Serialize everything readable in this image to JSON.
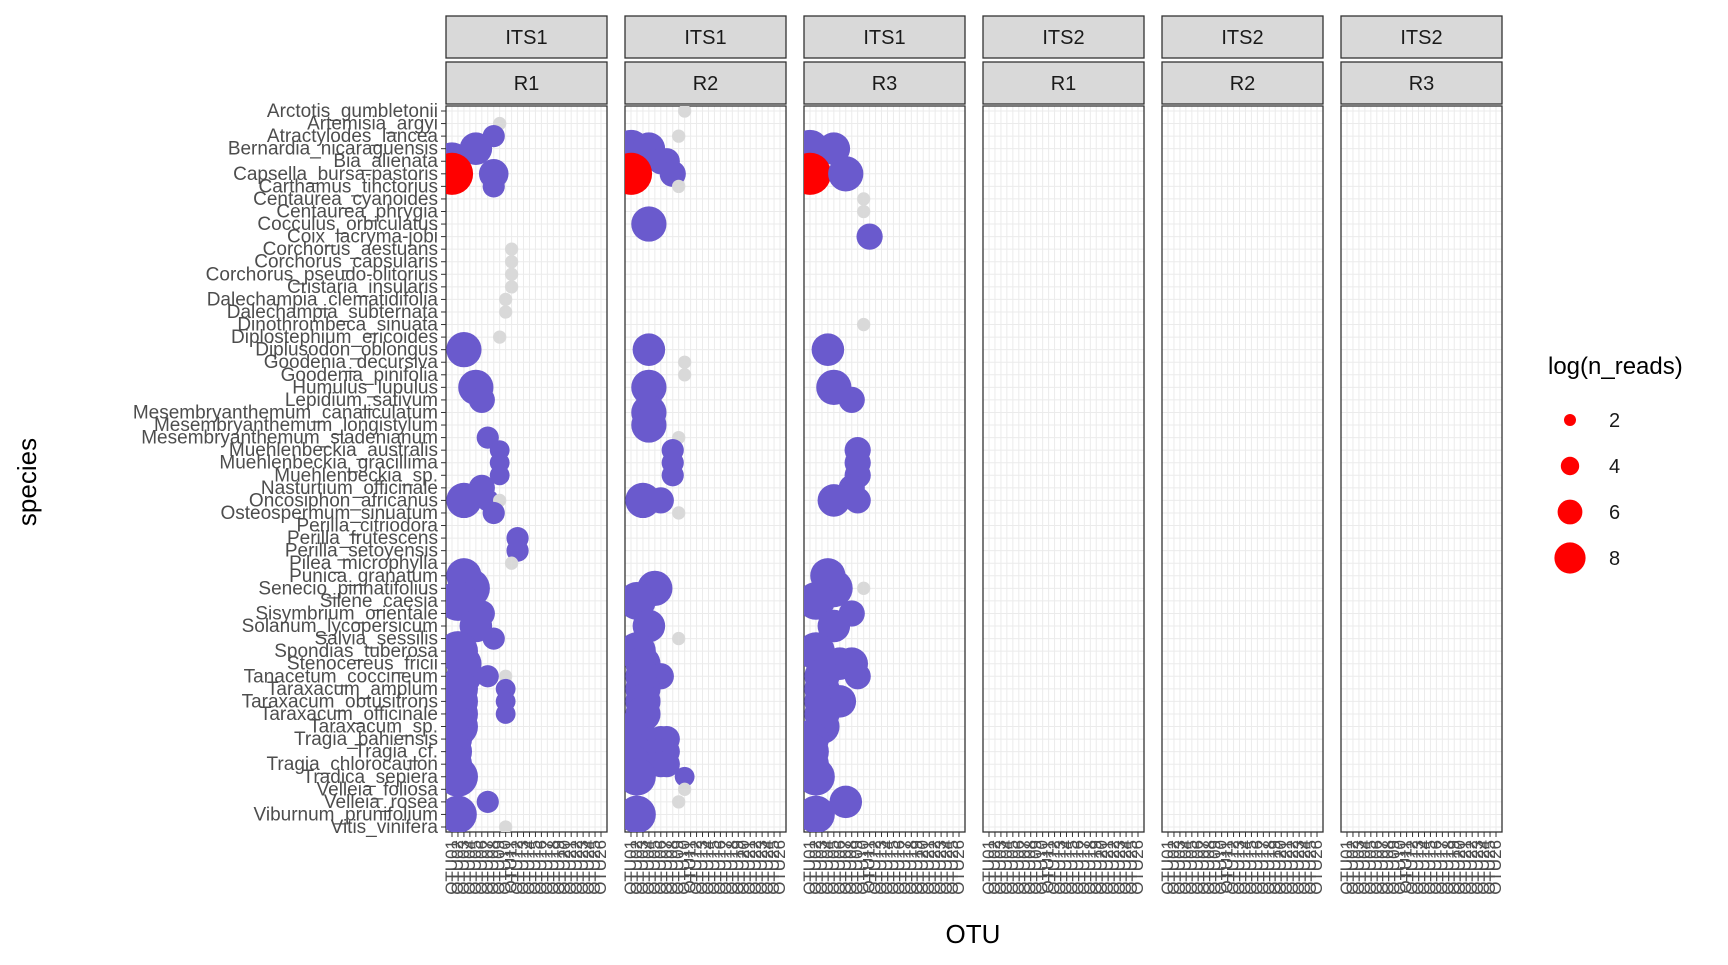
{
  "chart_data": {
    "type": "scatter",
    "title": "",
    "xlabel": "OTU",
    "ylabel": "species",
    "grid": true,
    "legend": {
      "title": "log(n_reads)",
      "placement": "right",
      "entries": [
        "2",
        "4",
        "6",
        "8"
      ],
      "values": [
        2,
        4,
        6,
        8
      ]
    },
    "size_range": [
      0,
      10
    ],
    "colors": {
      "high": "#ff0000",
      "mid": "#6a5acd",
      "low": "#d9d9d9",
      "strip_bg": "#d9d9d9",
      "panel_grid": "#ebebeb"
    },
    "facet_rows_labels": [
      "ITS1",
      "ITS1",
      "ITS1",
      "ITS2",
      "ITS2",
      "ITS2"
    ],
    "facet_col_labels": [
      "R1",
      "R2",
      "R3",
      "R1",
      "R2",
      "R3"
    ],
    "otus": [
      "OTU01",
      "OTU02",
      "OTU03",
      "OTU04",
      "OTU05",
      "OTU06",
      "OTU07",
      "OTU08",
      "OTU09",
      "OTU10",
      "OTU11",
      "OTU12",
      "OTU13",
      "OTU14",
      "OTU15",
      "OTU16",
      "OTU17",
      "OTU18",
      "OTU19",
      "OTU20",
      "OTU21",
      "OTU22",
      "OTU23",
      "OTU24",
      "OTU25",
      "OTU26"
    ],
    "species": [
      "Arctotis_gumbletonii",
      "Artemisia_argyi",
      "Atractylodes_lancea",
      "Bernardia_nicaraguensis",
      "Bia_alienata",
      "Capsella_bursa-pastoris",
      "Carthamus_tinctorius",
      "Centaurea_cyanoides",
      "Centaurea_phrygia",
      "Cocculus_orbiculatus",
      "Coix_lacryma-jobi",
      "Corchorus_aestuans",
      "Corchorus_capsularis",
      "Corchorus_pseudo-olitorius",
      "Cristaria_insularis",
      "Dalechampia_clematidifolia",
      "Dalechampia_subternata",
      "Dinothrombeca_sinuata",
      "Diplostephium_ericoides",
      "Diplusodon_oblongus",
      "Goodenia_decursiva",
      "Goodenia_pinifolia",
      "Humulus_lupulus",
      "Lepidium_sativum",
      "Mesembryanthemum_canaliculatum",
      "Mesembryanthemum_longistylum",
      "Mesembryanthemum_sladenianum",
      "Muehlenbeckia_australis",
      "Muehlenbeckia_gracillima",
      "Muehlenbeckia_sp.",
      "Nasturtium_officinale",
      "Oncosiphon_africanus",
      "Osteospermum_sinuatum",
      "Perilla_citriodora",
      "Perilla_frutescens",
      "Perilla_setoyensis",
      "Pilea_microphylla",
      "Punica_granatum",
      "Senecio_pinnatifolius",
      "Silene_caesia",
      "Sisymbrium_orientale",
      "Solanum_lycopersicum",
      "Salvia_sessilis",
      "Spondias_tuberosa",
      "Stenocereus_fricii",
      "Tanacetum_coccineum",
      "Taraxacum_amplum",
      "Taraxacum_obtusifrons",
      "Taraxacum_officinale",
      "Taraxacum_sp.",
      "Tragia_bahiensis",
      "Tragia_cf.",
      "Tragia_chlorocaulon",
      "Tradica_sepiera",
      "Velleia_foliosa",
      "Velleia_rosea",
      "Viburnum_prunifolium",
      "Vitis_vinifera"
    ],
    "series": [
      {
        "facet": "ITS1 R1",
        "points": [
          {
            "x": "OTU09",
            "y": "Artemisia_argyi",
            "v": 0.5
          },
          {
            "x": "OTU08",
            "y": "Atractylodes_lancea",
            "v": 2
          },
          {
            "x": "OTU05",
            "y": "Bernardia_nicaraguensis",
            "v": 5
          },
          {
            "x": "OTU01",
            "y": "Bia_alienata",
            "v": 7
          },
          {
            "x": "OTU01",
            "y": "Capsella_bursa-pastoris",
            "v": 9
          },
          {
            "x": "OTU08",
            "y": "Capsella_bursa-pastoris",
            "v": 4
          },
          {
            "x": "OTU08",
            "y": "Carthamus_tinctorius",
            "v": 2
          },
          {
            "x": "OTU11",
            "y": "Corchorus_aestuans",
            "v": 0.5
          },
          {
            "x": "OTU11",
            "y": "Corchorus_capsularis",
            "v": 0.5
          },
          {
            "x": "OTU11",
            "y": "Corchorus_pseudo-olitorius",
            "v": 0.5
          },
          {
            "x": "OTU11",
            "y": "Cristaria_insularis",
            "v": 0.5
          },
          {
            "x": "OTU10",
            "y": "Dalechampia_clematidifolia",
            "v": 0.5
          },
          {
            "x": "OTU10",
            "y": "Dalechampia_subternata",
            "v": 0.5
          },
          {
            "x": "OTU09",
            "y": "Diplostephium_ericoides",
            "v": 0.5
          },
          {
            "x": "OTU03",
            "y": "Diplusodon_oblongus",
            "v": 6
          },
          {
            "x": "OTU05",
            "y": "Humulus_lupulus",
            "v": 6
          },
          {
            "x": "OTU06",
            "y": "Lepidium_sativum",
            "v": 3
          },
          {
            "x": "OTU07",
            "y": "Mesembryanthemum_sladenianum",
            "v": 2
          },
          {
            "x": "OTU09",
            "y": "Muehlenbeckia_australis",
            "v": 1.5
          },
          {
            "x": "OTU09",
            "y": "Muehlenbeckia_gracillima",
            "v": 1.5
          },
          {
            "x": "OTU09",
            "y": "Muehlenbeckia_sp.",
            "v": 1.5
          },
          {
            "x": "OTU06",
            "y": "Nasturtium_officinale",
            "v": 3
          },
          {
            "x": "OTU03",
            "y": "Oncosiphon_africanus",
            "v": 6
          },
          {
            "x": "OTU07",
            "y": "Oncosiphon_africanus",
            "v": 2
          },
          {
            "x": "OTU09",
            "y": "Oncosiphon_africanus",
            "v": 0.5
          },
          {
            "x": "OTU08",
            "y": "Osteospermum_sinuatum",
            "v": 2
          },
          {
            "x": "OTU12",
            "y": "Perilla_frutescens",
            "v": 2
          },
          {
            "x": "OTU12",
            "y": "Perilla_setoyensis",
            "v": 2
          },
          {
            "x": "OTU11",
            "y": "Pilea_microphylla",
            "v": 0.5
          },
          {
            "x": "OTU03",
            "y": "Punica_granatum",
            "v": 6
          },
          {
            "x": "OTU04",
            "y": "Senecio_pinnatifolius",
            "v": 8
          },
          {
            "x": "OTU02",
            "y": "Silene_caesia",
            "v": 8
          },
          {
            "x": "OTU06",
            "y": "Sisymbrium_orientale",
            "v": 3
          },
          {
            "x": "OTU05",
            "y": "Solanum_lycopersicum",
            "v": 5
          },
          {
            "x": "OTU08",
            "y": "Salvia_sessilis",
            "v": 2
          },
          {
            "x": "OTU02",
            "y": "Spondias_tuberosa",
            "v": 8
          },
          {
            "x": "OTU03",
            "y": "Stenocereus_fricii",
            "v": 6
          },
          {
            "x": "OTU03",
            "y": "Tanacetum_coccineum",
            "v": 6
          },
          {
            "x": "OTU07",
            "y": "Tanacetum_coccineum",
            "v": 2
          },
          {
            "x": "OTU10",
            "y": "Tanacetum_coccineum",
            "v": 0.5
          },
          {
            "x": "OTU02",
            "y": "Taraxacum_amplum",
            "v": 8
          },
          {
            "x": "OTU10",
            "y": "Taraxacum_amplum",
            "v": 1.5
          },
          {
            "x": "OTU02",
            "y": "Taraxacum_obtusifrons",
            "v": 8
          },
          {
            "x": "OTU10",
            "y": "Taraxacum_obtusifrons",
            "v": 1.5
          },
          {
            "x": "OTU02",
            "y": "Taraxacum_officinale",
            "v": 8
          },
          {
            "x": "OTU10",
            "y": "Taraxacum_officinale",
            "v": 1.5
          },
          {
            "x": "OTU02",
            "y": "Taraxacum_sp.",
            "v": 8
          },
          {
            "x": "OTU01",
            "y": "Tragia_bahiensis",
            "v": 8
          },
          {
            "x": "OTU01",
            "y": "Tragia_cf.",
            "v": 8
          },
          {
            "x": "OTU01",
            "y": "Tragia_chlorocaulon",
            "v": 8
          },
          {
            "x": "OTU02",
            "y": "Tradica_sepiera",
            "v": 8
          },
          {
            "x": "OTU07",
            "y": "Velleia_rosea",
            "v": 2
          },
          {
            "x": "OTU02",
            "y": "Viburnum_prunifolium",
            "v": 7
          },
          {
            "x": "OTU10",
            "y": "Vitis_vinifera",
            "v": 0.5
          }
        ]
      },
      {
        "facet": "ITS1 R2",
        "points": [
          {
            "x": "OTU10",
            "y": "Arctotis_gumbletonii",
            "v": 0.5
          },
          {
            "x": "OTU09",
            "y": "Atractylodes_lancea",
            "v": 0.5
          },
          {
            "x": "OTU01",
            "y": "Bernardia_nicaraguensis",
            "v": 7
          },
          {
            "x": "OTU04",
            "y": "Bernardia_nicaraguensis",
            "v": 5
          },
          {
            "x": "OTU06",
            "y": "Bia_alienata",
            "v": 3
          },
          {
            "x": "OTU07",
            "y": "Bia_alienata",
            "v": 3
          },
          {
            "x": "OTU01",
            "y": "Capsella_bursa-pastoris",
            "v": 9
          },
          {
            "x": "OTU08",
            "y": "Capsella_bursa-pastoris",
            "v": 3
          },
          {
            "x": "OTU09",
            "y": "Carthamus_tinctorius",
            "v": 0.5
          },
          {
            "x": "OTU04",
            "y": "Cocculus_orbiculatus",
            "v": 6
          },
          {
            "x": "OTU04",
            "y": "Diplusodon_oblongus",
            "v": 5
          },
          {
            "x": "OTU10",
            "y": "Goodenia_decursiva",
            "v": 0.5
          },
          {
            "x": "OTU10",
            "y": "Goodenia_pinifolia",
            "v": 0.5
          },
          {
            "x": "OTU04",
            "y": "Humulus_lupulus",
            "v": 6
          },
          {
            "x": "OTU04",
            "y": "Mesembryanthemum_canaliculatum",
            "v": 6
          },
          {
            "x": "OTU04",
            "y": "Mesembryanthemum_longistylum",
            "v": 6
          },
          {
            "x": "OTU09",
            "y": "Mesembryanthemum_sladenianum",
            "v": 0.5
          },
          {
            "x": "OTU08",
            "y": "Muehlenbeckia_australis",
            "v": 2
          },
          {
            "x": "OTU08",
            "y": "Muehlenbeckia_gracillima",
            "v": 2
          },
          {
            "x": "OTU08",
            "y": "Muehlenbeckia_sp.",
            "v": 2
          },
          {
            "x": "OTU03",
            "y": "Oncosiphon_africanus",
            "v": 6
          },
          {
            "x": "OTU06",
            "y": "Oncosiphon_africanus",
            "v": 3
          },
          {
            "x": "OTU09",
            "y": "Osteospermum_sinuatum",
            "v": 0.5
          },
          {
            "x": "OTU05",
            "y": "Senecio_pinnatifolius",
            "v": 6
          },
          {
            "x": "OTU02",
            "y": "Silene_caesia",
            "v": 7
          },
          {
            "x": "OTU04",
            "y": "Solanum_lycopersicum",
            "v": 5
          },
          {
            "x": "OTU09",
            "y": "Salvia_sessilis",
            "v": 0.5
          },
          {
            "x": "OTU02",
            "y": "Spondias_tuberosa",
            "v": 7
          },
          {
            "x": "OTU03",
            "y": "Stenocereus_fricii",
            "v": 6
          },
          {
            "x": "OTU03",
            "y": "Tanacetum_coccineum",
            "v": 6
          },
          {
            "x": "OTU06",
            "y": "Tanacetum_coccineum",
            "v": 3
          },
          {
            "x": "OTU03",
            "y": "Taraxacum_amplum",
            "v": 6
          },
          {
            "x": "OTU03",
            "y": "Taraxacum_obtusifrons",
            "v": 6
          },
          {
            "x": "OTU03",
            "y": "Taraxacum_officinale",
            "v": 6
          },
          {
            "x": "OTU02",
            "y": "Taraxacum_sp.",
            "v": 6
          },
          {
            "x": "OTU01",
            "y": "Tragia_bahiensis",
            "v": 8
          },
          {
            "x": "OTU06",
            "y": "Tragia_bahiensis",
            "v": 3
          },
          {
            "x": "OTU07",
            "y": "Tragia_bahiensis",
            "v": 3
          },
          {
            "x": "OTU01",
            "y": "Tragia_cf.",
            "v": 8
          },
          {
            "x": "OTU06",
            "y": "Tragia_cf.",
            "v": 3
          },
          {
            "x": "OTU07",
            "y": "Tragia_cf.",
            "v": 3
          },
          {
            "x": "OTU01",
            "y": "Tragia_chlorocaulon",
            "v": 8
          },
          {
            "x": "OTU06",
            "y": "Tragia_chlorocaulon",
            "v": 3
          },
          {
            "x": "OTU07",
            "y": "Tragia_chlorocaulon",
            "v": 3
          },
          {
            "x": "OTU02",
            "y": "Tradica_sepiera",
            "v": 7
          },
          {
            "x": "OTU10",
            "y": "Tradica_sepiera",
            "v": 1.5
          },
          {
            "x": "OTU10",
            "y": "Velleia_foliosa",
            "v": 0.5
          },
          {
            "x": "OTU09",
            "y": "Velleia_rosea",
            "v": 0.5
          },
          {
            "x": "OTU02",
            "y": "Viburnum_prunifolium",
            "v": 7
          }
        ]
      },
      {
        "facet": "ITS1 R3",
        "points": [
          {
            "x": "OTU01",
            "y": "Bernardia_nicaraguensis",
            "v": 7
          },
          {
            "x": "OTU05",
            "y": "Bernardia_nicaraguensis",
            "v": 5
          },
          {
            "x": "OTU01",
            "y": "Capsella_bursa-pastoris",
            "v": 9
          },
          {
            "x": "OTU07",
            "y": "Capsella_bursa-pastoris",
            "v": 6
          },
          {
            "x": "OTU10",
            "y": "Centaurea_cyanoides",
            "v": 0.5
          },
          {
            "x": "OTU10",
            "y": "Centaurea_phrygia",
            "v": 0.5
          },
          {
            "x": "OTU11",
            "y": "Coix_lacryma-jobi",
            "v": 3
          },
          {
            "x": "OTU10",
            "y": "Dinothrombeca_sinuata",
            "v": 0.5
          },
          {
            "x": "OTU04",
            "y": "Diplusodon_oblongus",
            "v": 5
          },
          {
            "x": "OTU05",
            "y": "Humulus_lupulus",
            "v": 6
          },
          {
            "x": "OTU08",
            "y": "Lepidium_sativum",
            "v": 3
          },
          {
            "x": "OTU09",
            "y": "Muehlenbeckia_australis",
            "v": 3
          },
          {
            "x": "OTU09",
            "y": "Muehlenbeckia_gracillima",
            "v": 3
          },
          {
            "x": "OTU09",
            "y": "Muehlenbeckia_sp.",
            "v": 3
          },
          {
            "x": "OTU08",
            "y": "Nasturtium_officinale",
            "v": 3
          },
          {
            "x": "OTU05",
            "y": "Oncosiphon_africanus",
            "v": 5
          },
          {
            "x": "OTU09",
            "y": "Oncosiphon_africanus",
            "v": 3
          },
          {
            "x": "OTU04",
            "y": "Punica_granatum",
            "v": 6
          },
          {
            "x": "OTU05",
            "y": "Senecio_pinnatifolius",
            "v": 7
          },
          {
            "x": "OTU10",
            "y": "Senecio_pinnatifolius",
            "v": 0.5
          },
          {
            "x": "OTU02",
            "y": "Silene_caesia",
            "v": 7
          },
          {
            "x": "OTU08",
            "y": "Sisymbrium_orientale",
            "v": 3
          },
          {
            "x": "OTU05",
            "y": "Solanum_lycopersicum",
            "v": 5
          },
          {
            "x": "OTU02",
            "y": "Spondias_tuberosa",
            "v": 7
          },
          {
            "x": "OTU06",
            "y": "Stenocereus_fricii",
            "v": 5
          },
          {
            "x": "OTU08",
            "y": "Stenocereus_fricii",
            "v": 5
          },
          {
            "x": "OTU03",
            "y": "Tanacetum_coccineum",
            "v": 6
          },
          {
            "x": "OTU09",
            "y": "Tanacetum_coccineum",
            "v": 3
          },
          {
            "x": "OTU03",
            "y": "Taraxacum_amplum",
            "v": 6
          },
          {
            "x": "OTU03",
            "y": "Taraxacum_obtusifrons",
            "v": 6
          },
          {
            "x": "OTU06",
            "y": "Taraxacum_obtusifrons",
            "v": 5
          },
          {
            "x": "OTU03",
            "y": "Taraxacum_officinale",
            "v": 6
          },
          {
            "x": "OTU03",
            "y": "Taraxacum_sp.",
            "v": 6
          },
          {
            "x": "OTU01",
            "y": "Tragia_bahiensis",
            "v": 7
          },
          {
            "x": "OTU01",
            "y": "Tragia_cf.",
            "v": 7
          },
          {
            "x": "OTU01",
            "y": "Tragia_chlorocaulon",
            "v": 7
          },
          {
            "x": "OTU02",
            "y": "Tradica_sepiera",
            "v": 7
          },
          {
            "x": "OTU07",
            "y": "Velleia_rosea",
            "v": 5
          },
          {
            "x": "OTU02",
            "y": "Viburnum_prunifolium",
            "v": 7
          }
        ]
      },
      {
        "facet": "ITS2 R1",
        "points": []
      },
      {
        "facet": "ITS2 R2",
        "points": []
      },
      {
        "facet": "ITS2 R3",
        "points": []
      }
    ]
  }
}
